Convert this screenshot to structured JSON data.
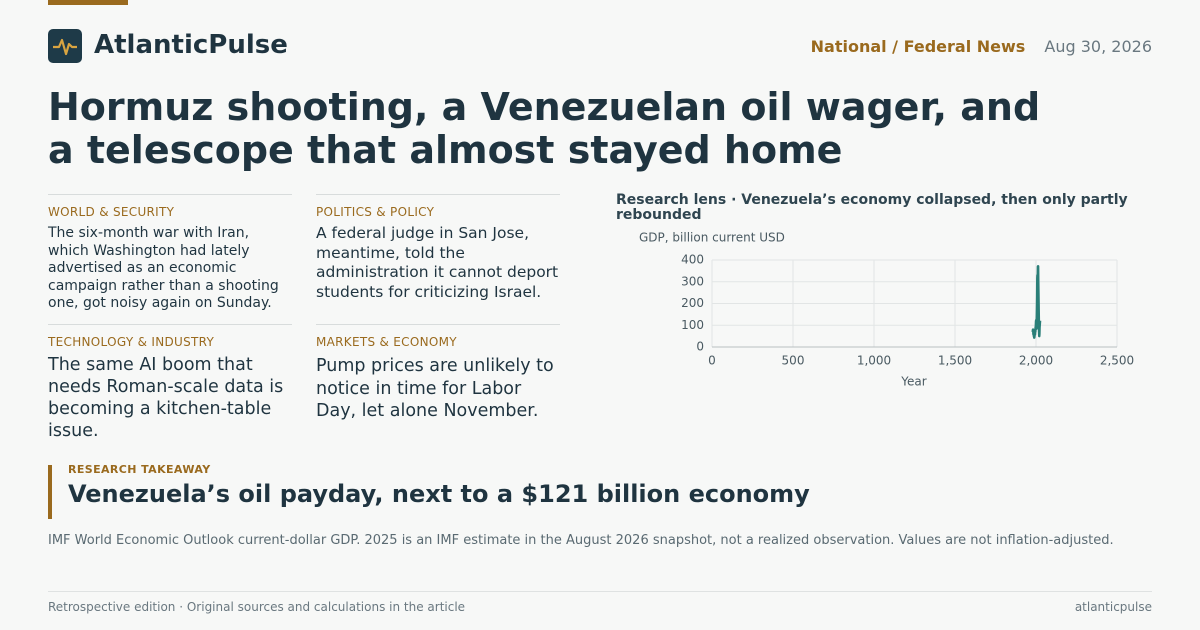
{
  "brand": {
    "name": "AtlanticPulse",
    "section": "National / Federal News",
    "date": "Aug 30, 2026"
  },
  "headline": "Hormuz shooting, a Venezuelan oil wager, and a telescope that almost stayed home",
  "briefs": [
    {
      "kicker": "WORLD & SECURITY",
      "text": "The six-month war with Iran, which Washington had lately advertised as an economic campaign rather than a shooting one, got noisy again on Sunday."
    },
    {
      "kicker": "POLITICS & POLICY",
      "text": "A federal judge in San Jose, meantime, told the administration it cannot deport students for criticizing Israel."
    },
    {
      "kicker": "TECHNOLOGY & INDUSTRY",
      "text": "The same AI boom that needs Roman-scale data is becoming a kitchen-table issue."
    },
    {
      "kicker": "MARKETS & ECONOMY",
      "text": "Pump prices are unlikely to notice in time for Labor Day, let alone November."
    }
  ],
  "chart_data": {
    "type": "line",
    "title": "Research lens · Venezuela’s economy collapsed, then only partly rebounded",
    "y_label": "GDP, billion current USD",
    "x_label": "Year",
    "x": [
      1980,
      1981,
      1982,
      1983,
      1984,
      1985,
      1986,
      1987,
      1988,
      1989,
      1990,
      1991,
      1992,
      1993,
      1994,
      1995,
      1996,
      1997,
      1998,
      1999,
      2000,
      2001,
      2002,
      2003,
      2004,
      2005,
      2006,
      2007,
      2008,
      2009,
      2010,
      2011,
      2012,
      2013,
      2014,
      2015,
      2016,
      2017,
      2018,
      2019,
      2020,
      2021,
      2022,
      2023,
      2024,
      2025
    ],
    "series": [
      {
        "name": "GDP",
        "color": "#2a7f78",
        "values": [
          69,
          79,
          80,
          79,
          58,
          60,
          60,
          49,
          61,
          43,
          48,
          53,
          60,
          60,
          58,
          77,
          70,
          86,
          91,
          98,
          117,
          123,
          93,
          84,
          113,
          146,
          184,
          230,
          316,
          330,
          272,
          316,
          370,
          371,
          300,
          250,
          200,
          150,
          100,
          70,
          50,
          60,
          90,
          100,
          110,
          121
        ]
      }
    ],
    "xlim": [
      0,
      2500
    ],
    "xticks": [
      0,
      500,
      {
        "value": 1000,
        "label": "1,000"
      },
      {
        "value": 1500,
        "label": "1,500"
      },
      {
        "value": 2000,
        "label": "2,000"
      },
      {
        "value": 2500,
        "label": "2,500"
      }
    ],
    "ylim": [
      0,
      400
    ],
    "yticks": [
      0,
      100,
      200,
      300,
      400
    ],
    "grid": true
  },
  "takeaway": {
    "label": "RESEARCH TAKEAWAY",
    "title": "Venezuela’s oil payday, next to a $121 billion economy",
    "note": "IMF World Economic Outlook current-dollar GDP. 2025 is an IMF estimate in the August 2026 snapshot, not a realized observation. Values are not inflation-adjusted."
  },
  "footer": {
    "left": "Retrospective edition · Original sources and calculations in the article",
    "right": "atlanticpulse"
  }
}
